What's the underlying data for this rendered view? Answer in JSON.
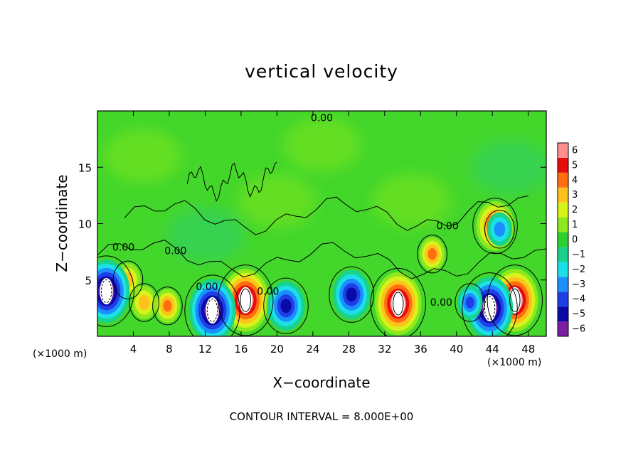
{
  "chart_data": {
    "type": "heatmap",
    "title": "vertical velocity",
    "xlabel": "X−coordinate",
    "ylabel": "Z−coordinate",
    "x_unit_left": "(×1000 m)",
    "x_unit_right": "(×1000 m)",
    "note": "CONTOUR INTERVAL = 8.000E+00",
    "xlim": [
      0,
      50
    ],
    "ylim": [
      0,
      20
    ],
    "x_ticks": [
      4,
      8,
      12,
      16,
      20,
      24,
      28,
      32,
      36,
      40,
      44,
      48
    ],
    "x_tick_labels": [
      "4",
      "8",
      "12",
      "16",
      "20",
      "24",
      "28",
      "32",
      "36",
      "40",
      "44",
      "48"
    ],
    "y_ticks": [
      5,
      10,
      15
    ],
    "y_tick_labels": [
      "5",
      "10",
      "15"
    ],
    "colorbar": {
      "levels": [
        -6,
        -5,
        -4,
        -3,
        -2,
        -1,
        0,
        1,
        2,
        3,
        4,
        5,
        6
      ],
      "labels": [
        "−6",
        "−5",
        "−4",
        "−3",
        "−2",
        "−1",
        "0",
        "1",
        "2",
        "3",
        "4",
        "5",
        "6"
      ],
      "colors": [
        "#7b1fa2",
        "#0a0aa8",
        "#1f3fe6",
        "#1c8fff",
        "#1ce0e8",
        "#19d28c",
        "#2ed02e",
        "#8ee81e",
        "#d8f21c",
        "#ffc21c",
        "#ff6f0f",
        "#e80c0c",
        "#ff8f8f"
      ]
    },
    "background_color": "#43d62b",
    "contour_labels": [
      {
        "text": "0.00",
        "x": 25.0,
        "y": 19.1
      },
      {
        "text": "0.00",
        "x": 2.9,
        "y": 7.6
      },
      {
        "text": "0.00",
        "x": 8.7,
        "y": 7.3
      },
      {
        "text": "0.00",
        "x": 12.2,
        "y": 4.1
      },
      {
        "text": "0.00",
        "x": 19.0,
        "y": 3.7
      },
      {
        "text": "0.00",
        "x": 39.0,
        "y": 9.5
      },
      {
        "text": "0.00",
        "x": 38.3,
        "y": 2.7
      }
    ],
    "features": [
      {
        "kind": "updraft",
        "x": 16.5,
        "y": 3.2,
        "amplitude": 6.5
      },
      {
        "kind": "updraft",
        "x": 33.5,
        "y": 2.9,
        "amplitude": 6.5
      },
      {
        "kind": "updraft",
        "x": 46.5,
        "y": 3.2,
        "amplitude": 6.5
      },
      {
        "kind": "updraft",
        "x": 44.3,
        "y": 9.8,
        "amplitude": 5
      },
      {
        "kind": "updraft",
        "x": 7.8,
        "y": 2.7,
        "amplitude": 4
      },
      {
        "kind": "updraft",
        "x": 5.2,
        "y": 3.0,
        "amplitude": 2.5
      },
      {
        "kind": "updraft",
        "x": 37.3,
        "y": 7.3,
        "amplitude": 3.5
      },
      {
        "kind": "updraft",
        "x": 3.4,
        "y": 5.0,
        "amplitude": 2.5
      },
      {
        "kind": "downdraft",
        "x": 1.0,
        "y": 4.0,
        "amplitude": 6.5
      },
      {
        "kind": "downdraft",
        "x": 12.8,
        "y": 2.3,
        "amplitude": 6.5
      },
      {
        "kind": "downdraft",
        "x": 43.7,
        "y": 2.5,
        "amplitude": 6.5
      },
      {
        "kind": "downdraft",
        "x": 28.3,
        "y": 3.7,
        "amplitude": 5
      },
      {
        "kind": "downdraft",
        "x": 21.0,
        "y": 2.7,
        "amplitude": 5
      },
      {
        "kind": "downdraft",
        "x": 41.5,
        "y": 3.0,
        "amplitude": 4
      },
      {
        "kind": "downdraft",
        "x": 44.8,
        "y": 9.5,
        "amplitude": 3
      }
    ]
  }
}
